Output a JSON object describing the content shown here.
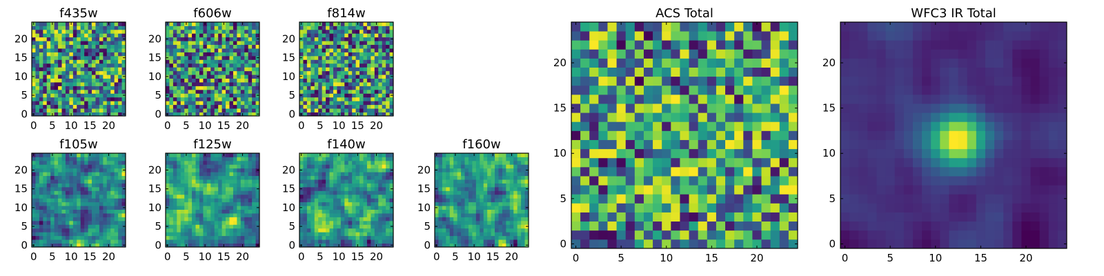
{
  "figure": {
    "colormap": "viridis"
  },
  "chart_data": [
    {
      "type": "heatmap",
      "title": "f435w",
      "xlim": [
        -0.5,
        24.5
      ],
      "ylim": [
        -0.5,
        24.5
      ],
      "grid_n": 25,
      "seed": 11,
      "smooth": 0,
      "xticks": [
        "0",
        "5",
        "10",
        "15",
        "20"
      ],
      "yticks": [
        "0",
        "5",
        "10",
        "15",
        "20"
      ],
      "xlabel": "",
      "ylabel": ""
    },
    {
      "type": "heatmap",
      "title": "f606w",
      "xlim": [
        -0.5,
        24.5
      ],
      "ylim": [
        -0.5,
        24.5
      ],
      "grid_n": 25,
      "seed": 23,
      "smooth": 0,
      "xticks": [
        "0",
        "5",
        "10",
        "15",
        "20"
      ],
      "yticks": [
        "0",
        "5",
        "10",
        "15",
        "20"
      ],
      "xlabel": "",
      "ylabel": ""
    },
    {
      "type": "heatmap",
      "title": "f814w",
      "xlim": [
        -0.5,
        24.5
      ],
      "ylim": [
        -0.5,
        24.5
      ],
      "grid_n": 25,
      "seed": 37,
      "smooth": 0,
      "xticks": [
        "0",
        "5",
        "10",
        "15",
        "20"
      ],
      "yticks": [
        "0",
        "5",
        "10",
        "15",
        "20"
      ],
      "xlabel": "",
      "ylabel": ""
    },
    {
      "type": "heatmap",
      "title": "f105w",
      "xlim": [
        -0.5,
        24.5
      ],
      "ylim": [
        -0.5,
        24.5
      ],
      "grid_n": 25,
      "seed": 41,
      "smooth": 1,
      "xticks": [
        "0",
        "5",
        "10",
        "15",
        "20"
      ],
      "yticks": [
        "0",
        "5",
        "10",
        "15",
        "20"
      ],
      "xlabel": "",
      "ylabel": ""
    },
    {
      "type": "heatmap",
      "title": "f125w",
      "xlim": [
        -0.5,
        24.5
      ],
      "ylim": [
        -0.5,
        24.5
      ],
      "grid_n": 25,
      "seed": 53,
      "smooth": 1,
      "xticks": [
        "0",
        "5",
        "10",
        "15",
        "20"
      ],
      "yticks": [
        "0",
        "5",
        "10",
        "15",
        "20"
      ],
      "xlabel": "",
      "ylabel": ""
    },
    {
      "type": "heatmap",
      "title": "f140w",
      "xlim": [
        -0.5,
        24.5
      ],
      "ylim": [
        -0.5,
        24.5
      ],
      "grid_n": 25,
      "seed": 67,
      "smooth": 1,
      "xticks": [
        "0",
        "5",
        "10",
        "15",
        "20"
      ],
      "yticks": [
        "0",
        "5",
        "10",
        "15",
        "20"
      ],
      "xlabel": "",
      "ylabel": ""
    },
    {
      "type": "heatmap",
      "title": "f160w",
      "xlim": [
        -0.5,
        24.5
      ],
      "ylim": [
        -0.5,
        24.5
      ],
      "grid_n": 25,
      "seed": 79,
      "smooth": 1,
      "xticks": [
        "0",
        "5",
        "10",
        "15",
        "20"
      ],
      "yticks": [
        "0",
        "5",
        "10",
        "15",
        "20"
      ],
      "xlabel": "",
      "ylabel": ""
    },
    {
      "type": "heatmap",
      "title": "ACS Total",
      "xlim": [
        -0.5,
        24.5
      ],
      "ylim": [
        -0.5,
        24.5
      ],
      "grid_n": 25,
      "seed": 97,
      "smooth": 0,
      "bias": 0.18,
      "xticks": [
        "0",
        "5",
        "10",
        "15",
        "20"
      ],
      "yticks": [
        "0",
        "5",
        "10",
        "15",
        "20"
      ],
      "xlabel": "",
      "ylabel": ""
    },
    {
      "type": "heatmap",
      "title": "WFC3 IR Total",
      "xlim": [
        -0.5,
        24.5
      ],
      "ylim": [
        -0.5,
        24.5
      ],
      "grid_n": 25,
      "seed": 131,
      "smooth": 2,
      "peak": {
        "x": 12.5,
        "y": 11.5,
        "sigma": 2.2,
        "amp": 1.6
      },
      "xticks": [
        "0",
        "5",
        "10",
        "15",
        "20"
      ],
      "yticks": [
        "0",
        "5",
        "10",
        "15",
        "20"
      ],
      "xlabel": "",
      "ylabel": ""
    }
  ]
}
